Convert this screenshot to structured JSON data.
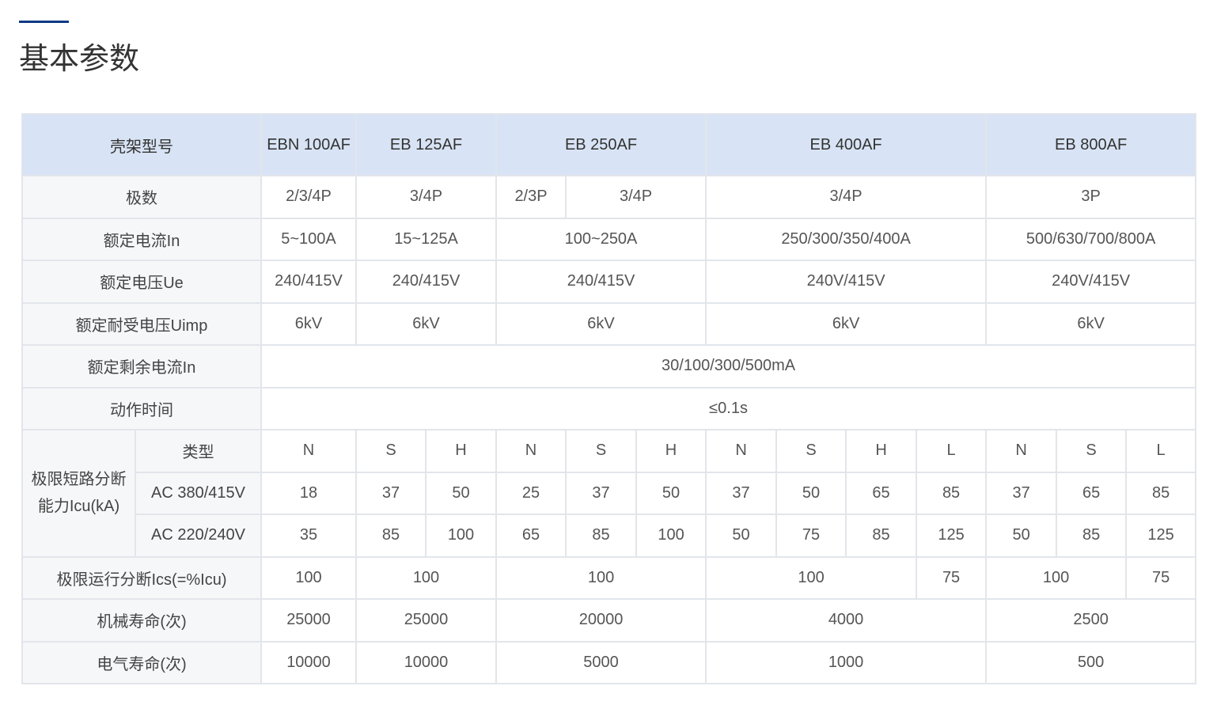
{
  "page": {
    "title": "基本参数",
    "accent_color": "#0d3a85",
    "header_bg": "#d8e4f5"
  },
  "table": {
    "rows": [
      {
        "head": true,
        "cells": [
          {
            "t": "壳架型号",
            "cs": 2,
            "l": true
          },
          {
            "t": "EBN 100AF"
          },
          {
            "t": "EB 125AF",
            "cs": 2
          },
          {
            "t": "EB 250AF",
            "cs": 3
          },
          {
            "t": "EB 400AF",
            "cs": 4
          },
          {
            "t": "EB 800AF",
            "cs": 3
          }
        ]
      },
      {
        "cells": [
          {
            "t": "极数",
            "cs": 2,
            "l": true
          },
          {
            "t": "2/3/4P"
          },
          {
            "t": "3/4P",
            "cs": 2
          },
          {
            "t": "2/3P"
          },
          {
            "t": "3/4P",
            "cs": 2
          },
          {
            "t": "3/4P",
            "cs": 4
          },
          {
            "t": "3P",
            "cs": 3
          }
        ]
      },
      {
        "cells": [
          {
            "t": "额定电流In",
            "cs": 2,
            "l": true
          },
          {
            "t": "5~100A"
          },
          {
            "t": "15~125A",
            "cs": 2
          },
          {
            "t": "100~250A",
            "cs": 3
          },
          {
            "t": "250/300/350/400A",
            "cs": 4
          },
          {
            "t": "500/630/700/800A",
            "cs": 3
          }
        ]
      },
      {
        "cells": [
          {
            "t": "额定电压Ue",
            "cs": 2,
            "l": true
          },
          {
            "t": "240/415V"
          },
          {
            "t": "240/415V",
            "cs": 2
          },
          {
            "t": "240/415V",
            "cs": 3
          },
          {
            "t": "240V/415V",
            "cs": 4
          },
          {
            "t": "240V/415V",
            "cs": 3
          }
        ]
      },
      {
        "cells": [
          {
            "t": "额定耐受电压Uimp",
            "cs": 2,
            "l": true
          },
          {
            "t": "6kV"
          },
          {
            "t": "6kV",
            "cs": 2
          },
          {
            "t": "6kV",
            "cs": 3
          },
          {
            "t": "6kV",
            "cs": 4
          },
          {
            "t": "6kV",
            "cs": 3
          }
        ]
      },
      {
        "cells": [
          {
            "t": "额定剩余电流In",
            "cs": 2,
            "l": true
          },
          {
            "t": "30/100/300/500mA",
            "cs": 13
          }
        ]
      },
      {
        "cells": [
          {
            "t": "动作时间",
            "cs": 2,
            "l": true
          },
          {
            "t": "≤0.1s",
            "cs": 13
          }
        ]
      },
      {
        "cells": [
          {
            "t": "极限短路分断能力Icu(kA)",
            "rs": 3,
            "l": true,
            "w": true
          },
          {
            "t": "类型",
            "l": true
          },
          {
            "t": "N"
          },
          {
            "t": "S"
          },
          {
            "t": "H"
          },
          {
            "t": "N"
          },
          {
            "t": "S"
          },
          {
            "t": "H"
          },
          {
            "t": "N"
          },
          {
            "t": "S"
          },
          {
            "t": "H"
          },
          {
            "t": "L"
          },
          {
            "t": "N"
          },
          {
            "t": "S"
          },
          {
            "t": "L"
          }
        ]
      },
      {
        "cells": [
          {
            "t": "AC 380/415V",
            "l": true
          },
          {
            "t": "18"
          },
          {
            "t": "37"
          },
          {
            "t": "50"
          },
          {
            "t": "25"
          },
          {
            "t": "37"
          },
          {
            "t": "50"
          },
          {
            "t": "37"
          },
          {
            "t": "50"
          },
          {
            "t": "65"
          },
          {
            "t": "85"
          },
          {
            "t": "37"
          },
          {
            "t": "65"
          },
          {
            "t": "85"
          }
        ]
      },
      {
        "cells": [
          {
            "t": "AC 220/240V",
            "l": true
          },
          {
            "t": "35"
          },
          {
            "t": "85"
          },
          {
            "t": "100"
          },
          {
            "t": "65"
          },
          {
            "t": "85"
          },
          {
            "t": "100"
          },
          {
            "t": "50"
          },
          {
            "t": "75"
          },
          {
            "t": "85"
          },
          {
            "t": "125"
          },
          {
            "t": "50"
          },
          {
            "t": "85"
          },
          {
            "t": "125"
          }
        ]
      },
      {
        "cells": [
          {
            "t": "极限运行分断Ics(=%Icu)",
            "cs": 2,
            "l": true
          },
          {
            "t": "100"
          },
          {
            "t": "100",
            "cs": 2
          },
          {
            "t": "100",
            "cs": 3
          },
          {
            "t": "100",
            "cs": 3
          },
          {
            "t": "75"
          },
          {
            "t": "100",
            "cs": 2
          },
          {
            "t": "75"
          }
        ]
      },
      {
        "cells": [
          {
            "t": "机械寿命(次)",
            "cs": 2,
            "l": true
          },
          {
            "t": "25000"
          },
          {
            "t": "25000",
            "cs": 2
          },
          {
            "t": "20000",
            "cs": 3
          },
          {
            "t": "4000",
            "cs": 4
          },
          {
            "t": "2500",
            "cs": 3
          }
        ]
      },
      {
        "cells": [
          {
            "t": "电气寿命(次)",
            "cs": 2,
            "l": true
          },
          {
            "t": "10000"
          },
          {
            "t": "10000",
            "cs": 2
          },
          {
            "t": "5000",
            "cs": 3
          },
          {
            "t": "1000",
            "cs": 4
          },
          {
            "t": "500",
            "cs": 3
          }
        ]
      }
    ]
  }
}
